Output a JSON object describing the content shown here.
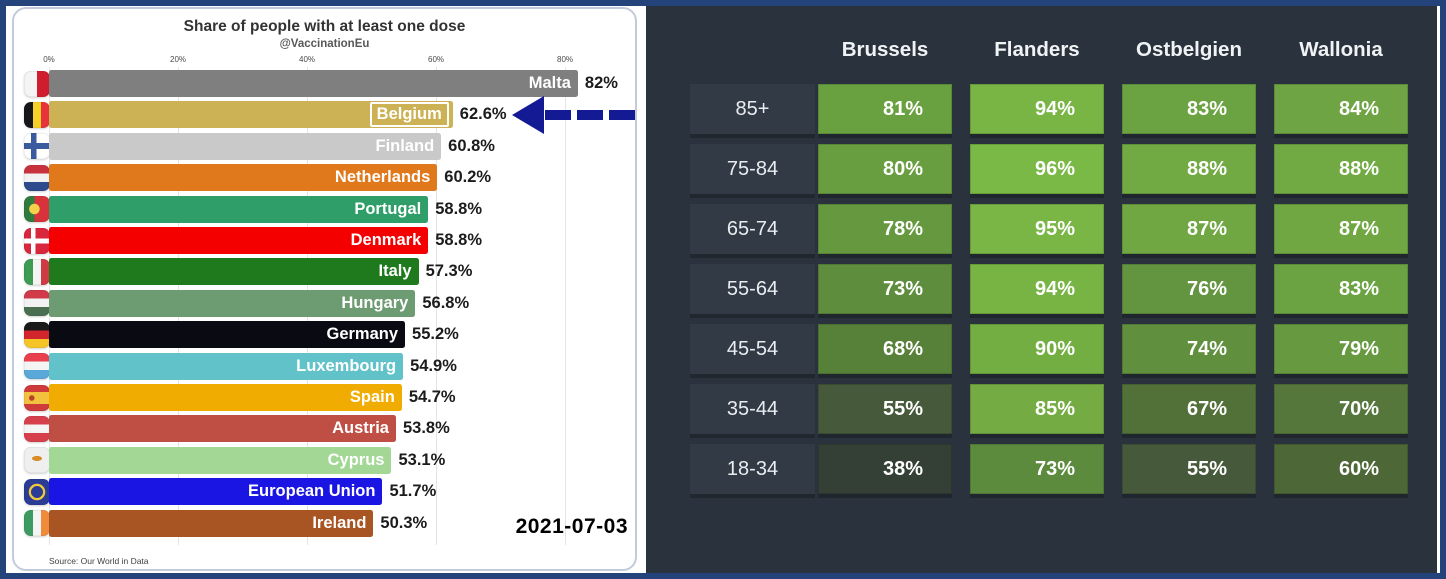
{
  "frame": {
    "border_color": "#24437a"
  },
  "left_chart": {
    "title": "Share of people with at least one dose",
    "subtitle": "@VaccinationEu",
    "date": "2021-07-03",
    "source": "Source: Our World in Data",
    "arrow_color": "#141a94",
    "highlight_country": "Belgium"
  },
  "right_table": {
    "background": "#2a333d",
    "row_label_background": "#323b45"
  },
  "chart_data": [
    {
      "type": "bar",
      "orientation": "horizontal",
      "title": "Share of people with at least one dose",
      "subtitle": "@VaccinationEu",
      "date_label": "2021-07-03",
      "source": "Source: Our World in Data",
      "axis_tick_labels": [
        "0%",
        "20%",
        "40%",
        "60%",
        "80%"
      ],
      "axis_tick_values": [
        0,
        20,
        40,
        60,
        80
      ],
      "xlim": [
        0,
        90
      ],
      "grid": true,
      "categories": [
        "Malta",
        "Belgium",
        "Finland",
        "Netherlands",
        "Portugal",
        "Denmark",
        "Italy",
        "Hungary",
        "Germany",
        "Luxembourg",
        "Spain",
        "Austria",
        "Cyprus",
        "European Union",
        "Ireland"
      ],
      "values": [
        82,
        62.6,
        60.8,
        60.2,
        58.8,
        58.8,
        57.3,
        56.8,
        55.2,
        54.9,
        54.7,
        53.8,
        53.1,
        51.7,
        50.3
      ],
      "value_labels": [
        "82%",
        "62.6%",
        "60.8%",
        "60.2%",
        "58.8%",
        "58.8%",
        "57.3%",
        "56.8%",
        "55.2%",
        "54.9%",
        "54.7%",
        "53.8%",
        "53.1%",
        "51.7%",
        "50.3%"
      ],
      "bar_colors": [
        "#7f7f7f",
        "#ccb155",
        "#c9c9c9",
        "#e0791b",
        "#2f9e69",
        "#f40000",
        "#1f7a1e",
        "#6d9b72",
        "#0a0a12",
        "#61c3c9",
        "#f0ac00",
        "#bf4f44",
        "#a3d795",
        "#1b15e3",
        "#a85423"
      ],
      "flags": [
        "mt",
        "be",
        "fi",
        "nl",
        "pt",
        "dk",
        "it",
        "hu",
        "de",
        "lu",
        "es",
        "at",
        "cy",
        "eu",
        "ie"
      ],
      "highlight_index": 1,
      "annotation": {
        "type": "dashed-arrow",
        "points_at": "Belgium",
        "color": "#141a94"
      }
    },
    {
      "type": "heatmap",
      "columns": [
        "Brussels",
        "Flanders",
        "Ostbelgien",
        "Wallonia"
      ],
      "rows": [
        "85+",
        "75-84",
        "65-74",
        "55-64",
        "45-54",
        "35-44",
        "18-34"
      ],
      "values": [
        [
          81,
          94,
          83,
          84
        ],
        [
          80,
          96,
          88,
          88
        ],
        [
          78,
          95,
          87,
          87
        ],
        [
          73,
          94,
          76,
          83
        ],
        [
          68,
          90,
          74,
          79
        ],
        [
          55,
          85,
          67,
          70
        ],
        [
          38,
          73,
          55,
          60
        ]
      ],
      "cell_labels": [
        [
          "81%",
          "94%",
          "83%",
          "84%"
        ],
        [
          "80%",
          "96%",
          "88%",
          "88%"
        ],
        [
          "78%",
          "95%",
          "87%",
          "87%"
        ],
        [
          "73%",
          "94%",
          "76%",
          "83%"
        ],
        [
          "68%",
          "90%",
          "74%",
          "79%"
        ],
        [
          "55%",
          "85%",
          "67%",
          "70%"
        ],
        [
          "38%",
          "73%",
          "55%",
          "60%"
        ]
      ],
      "cell_colors": [
        [
          "#69a040",
          "#78b544",
          "#6ca342",
          "#6ea443"
        ],
        [
          "#689d40",
          "#7bb946",
          "#71a943",
          "#71a943"
        ],
        [
          "#66993f",
          "#79b645",
          "#70a743",
          "#70a743"
        ],
        [
          "#5e8e3d",
          "#78b444",
          "#639540",
          "#6ca342"
        ],
        [
          "#578139",
          "#73ae43",
          "#608f3d",
          "#679a40"
        ],
        [
          "#46593a",
          "#74ab43",
          "#527139",
          "#55773b"
        ],
        [
          "#343f36",
          "#5d8b3e",
          "#46593a",
          "#4d6737"
        ]
      ],
      "legend": "none",
      "grid": false
    }
  ]
}
